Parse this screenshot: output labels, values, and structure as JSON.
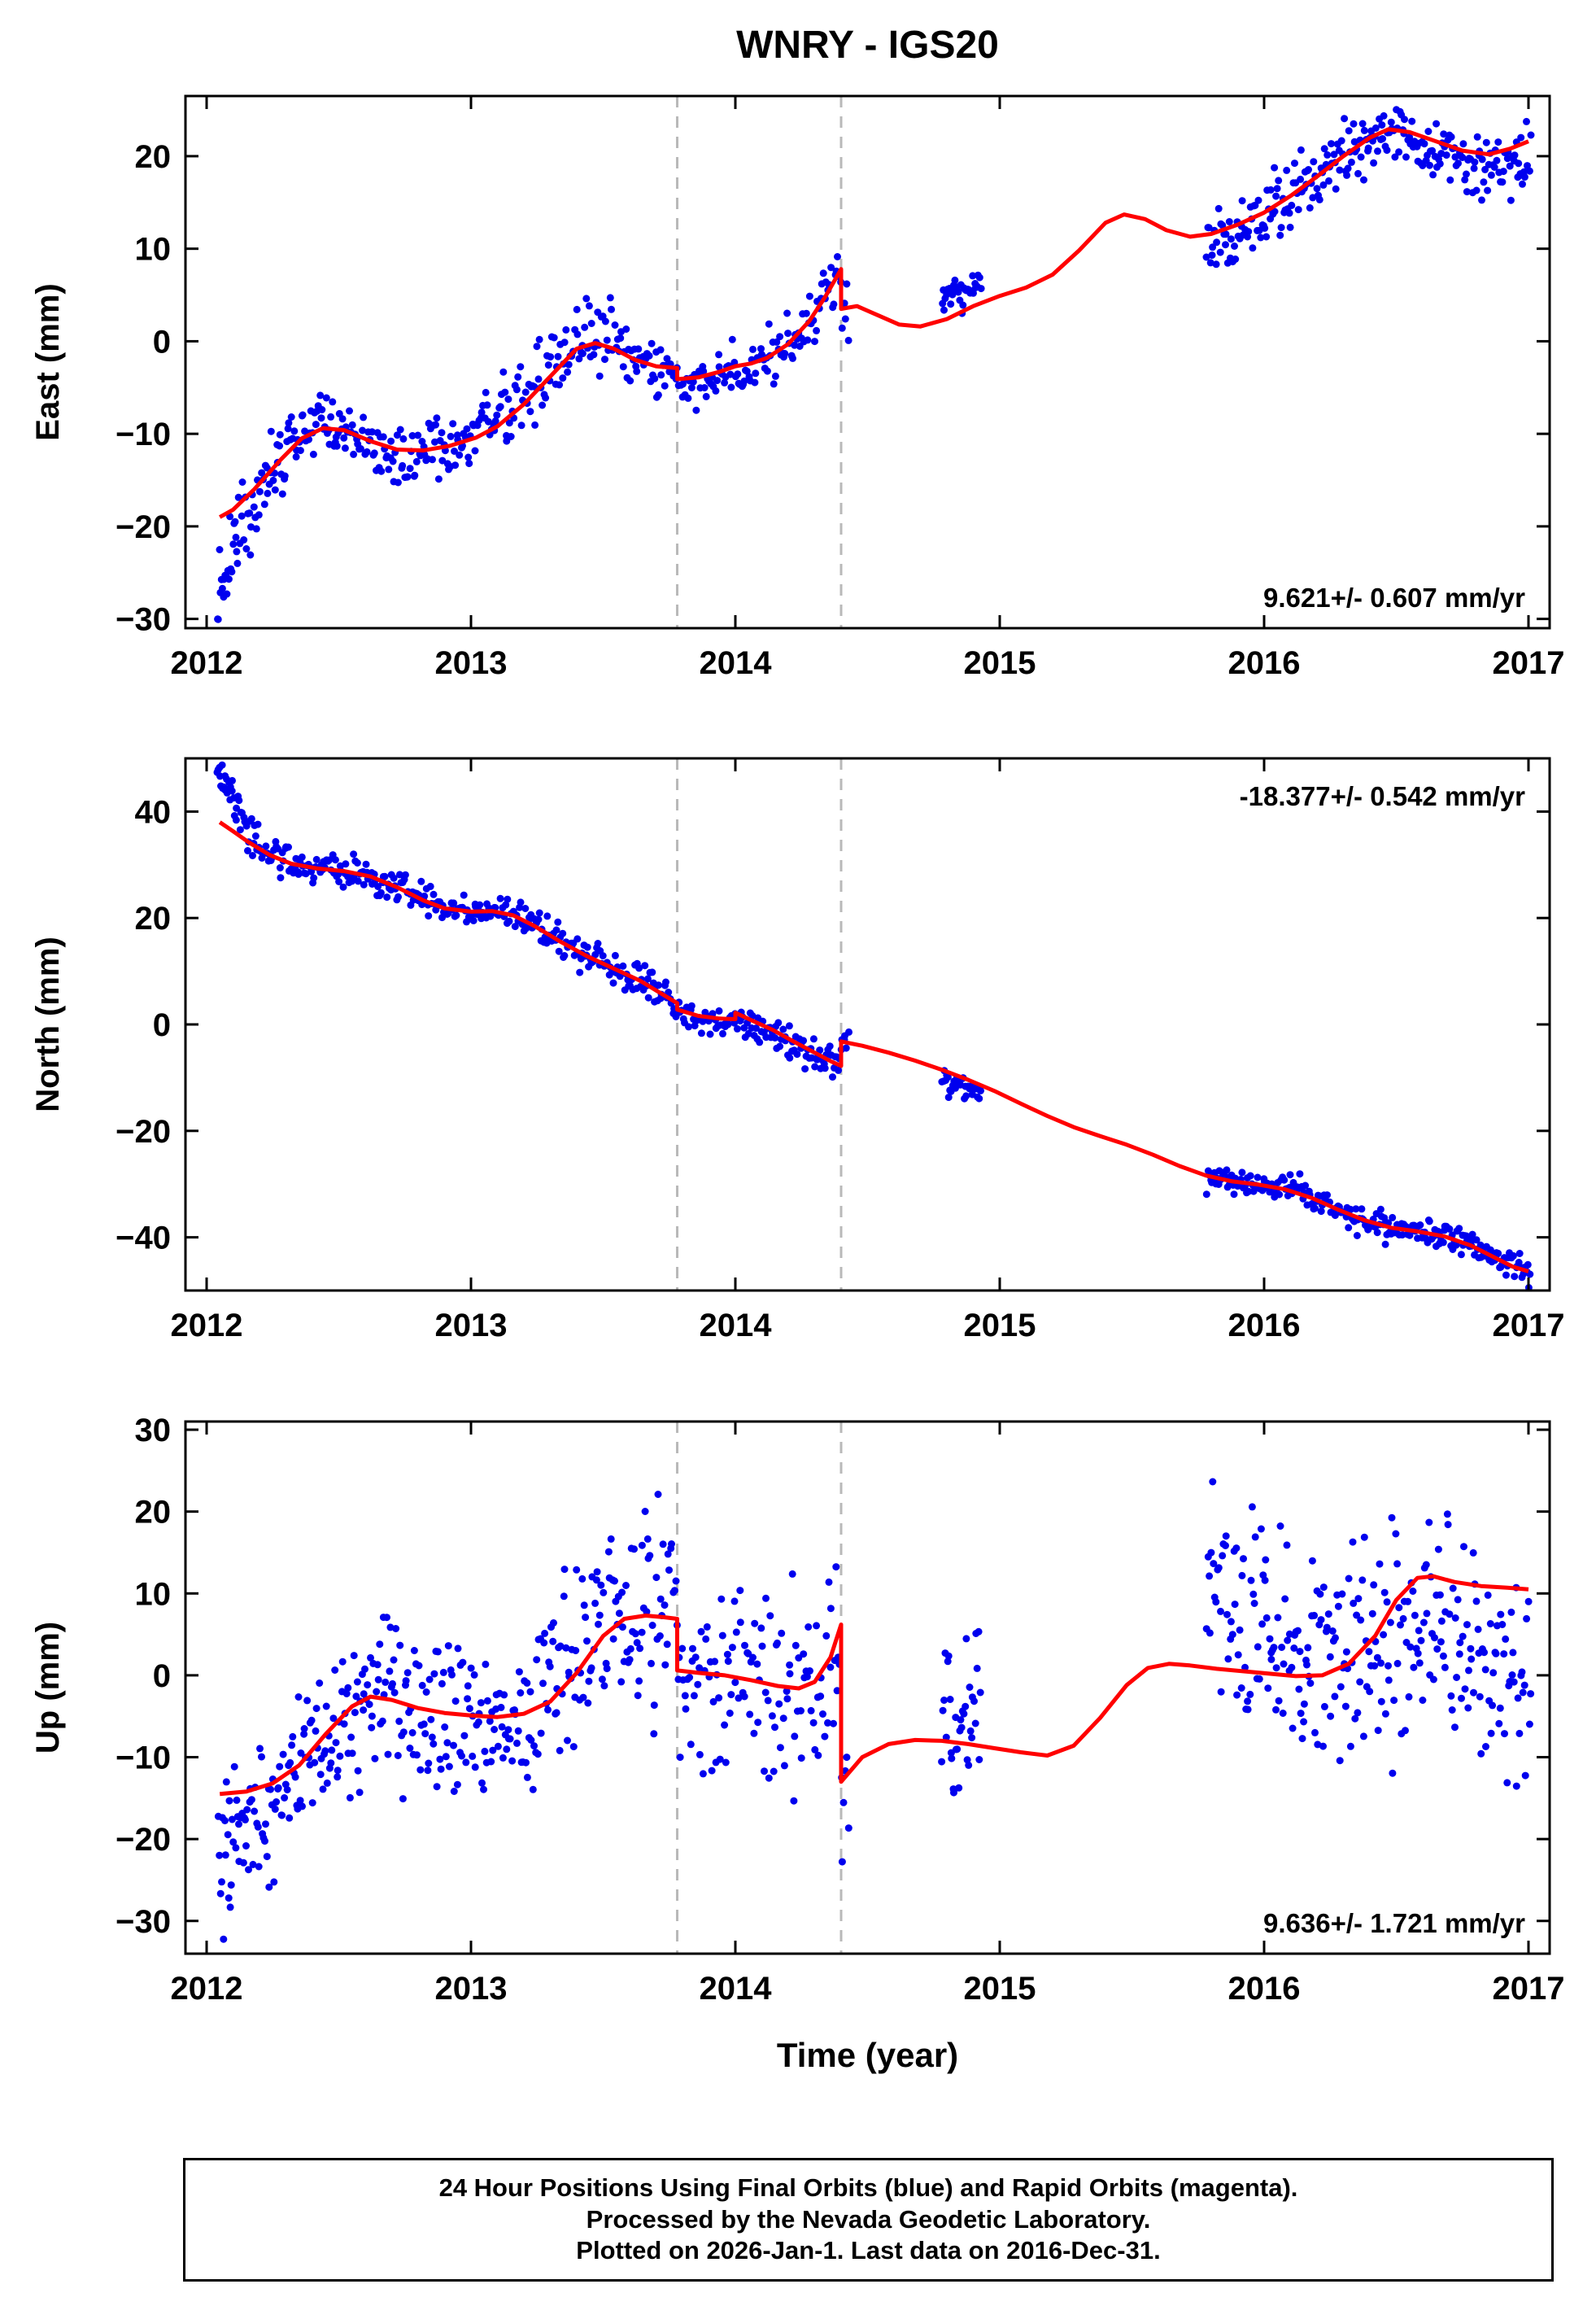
{
  "title": "WNRY - IGS20",
  "footer": {
    "lines": [
      "24 Hour Positions Using Final Orbits (blue) and Rapid Orbits (magenta).",
      "Processed by the Nevada Geodetic Laboratory.",
      "Plotted on 2026-Jan-1. Last data on 2016-Dec-31."
    ]
  },
  "chart_data": {
    "type": "scatter",
    "title": "WNRY - IGS20",
    "xlabel": "Time (year)",
    "xlim": [
      2011.92,
      2017.08
    ],
    "x_ticks": [
      2012,
      2013,
      2014,
      2015,
      2016,
      2017
    ],
    "event_times": [
      2013.78,
      2014.4
    ],
    "legend": "none",
    "grid": false,
    "colors": {
      "scatter": "#0000ee",
      "model": "#ff0000",
      "event_line": "#b9b9b9",
      "frame": "#000000"
    },
    "panels": [
      {
        "name": "east",
        "ylabel": "East (mm)",
        "ylim": [
          -31,
          26.5
        ],
        "yticks": [
          -30,
          -20,
          -10,
          0,
          10,
          20
        ],
        "rate": "9.621+/- 0.607 mm/yr",
        "rate_pos": "bottom-right",
        "model": [
          [
            2012.05,
            -19.0
          ],
          [
            2012.1,
            -18.2
          ],
          [
            2012.18,
            -16.0
          ],
          [
            2012.28,
            -12.8
          ],
          [
            2012.36,
            -10.5
          ],
          [
            2012.44,
            -9.4
          ],
          [
            2012.52,
            -9.6
          ],
          [
            2012.62,
            -10.8
          ],
          [
            2012.72,
            -11.7
          ],
          [
            2012.82,
            -11.8
          ],
          [
            2012.92,
            -11.3
          ],
          [
            2013.02,
            -10.4
          ],
          [
            2013.1,
            -9.2
          ],
          [
            2013.2,
            -6.8
          ],
          [
            2013.3,
            -3.8
          ],
          [
            2013.4,
            -0.8
          ],
          [
            2013.47,
            -0.2
          ],
          [
            2013.54,
            -0.8
          ],
          [
            2013.62,
            -2.0
          ],
          [
            2013.7,
            -2.7
          ],
          [
            2013.78,
            -2.9
          ],
          [
            2013.78,
            -4.1
          ],
          [
            2013.86,
            -3.9
          ],
          [
            2013.94,
            -3.3
          ],
          [
            2014.0,
            -2.7
          ],
          [
            2014.06,
            -2.4
          ],
          [
            2014.12,
            -1.8
          ],
          [
            2014.2,
            -0.3
          ],
          [
            2014.28,
            2.2
          ],
          [
            2014.34,
            4.8
          ],
          [
            2014.4,
            7.8
          ],
          [
            2014.4,
            3.5
          ],
          [
            2014.46,
            3.8
          ],
          [
            2014.54,
            2.8
          ],
          [
            2014.62,
            1.8
          ],
          [
            2014.7,
            1.6
          ],
          [
            2014.8,
            2.4
          ],
          [
            2014.9,
            3.8
          ],
          [
            2015.0,
            4.9
          ],
          [
            2015.1,
            5.8
          ],
          [
            2015.2,
            7.2
          ],
          [
            2015.3,
            9.8
          ],
          [
            2015.4,
            12.8
          ],
          [
            2015.47,
            13.7
          ],
          [
            2015.55,
            13.2
          ],
          [
            2015.63,
            12.0
          ],
          [
            2015.72,
            11.3
          ],
          [
            2015.8,
            11.6
          ],
          [
            2015.9,
            12.6
          ],
          [
            2016.0,
            13.9
          ],
          [
            2016.1,
            15.7
          ],
          [
            2016.2,
            17.8
          ],
          [
            2016.3,
            20.0
          ],
          [
            2016.4,
            22.0
          ],
          [
            2016.47,
            22.9
          ],
          [
            2016.55,
            22.6
          ],
          [
            2016.65,
            21.6
          ],
          [
            2016.75,
            20.6
          ],
          [
            2016.85,
            20.2
          ],
          [
            2016.93,
            20.8
          ],
          [
            2017.0,
            21.6
          ]
        ],
        "scatter_segments": [
          {
            "t": [
              2012.04,
              2012.12
            ],
            "bias": [
              -7,
              -4
            ],
            "sd": 2.0,
            "n": 22
          },
          {
            "t": [
              2012.12,
              2012.32
            ],
            "bias": [
              -3,
              0
            ],
            "sd": 2.2,
            "n": 42
          },
          {
            "t": [
              2012.32,
              2012.56
            ],
            "bias": [
              0.5,
              0.5
            ],
            "sd": 1.5,
            "n": 50
          },
          {
            "t": [
              2012.56,
              2013.06
            ],
            "bias": [
              -0.5,
              0
            ],
            "sd": 1.8,
            "n": 95
          },
          {
            "t": [
              2013.06,
              2013.62
            ],
            "bias": [
              0.5,
              0.5
            ],
            "sd": 2.0,
            "n": 105
          },
          {
            "t": [
              2013.62,
              2013.96
            ],
            "bias": [
              -0.5,
              -0.5
            ],
            "sd": 1.3,
            "n": 62
          },
          {
            "t": [
              2013.96,
              2014.43
            ],
            "bias": [
              0,
              0
            ],
            "sd": 1.6,
            "n": 85
          },
          {
            "t": [
              2014.78,
              2014.93
            ],
            "bias": [
              2,
              2.5
            ],
            "sd": 0.9,
            "n": 34
          },
          {
            "t": [
              2015.78,
              2016.02
            ],
            "bias": [
              -1.5,
              -0.5
            ],
            "sd": 1.6,
            "n": 48
          },
          {
            "t": [
              2016.02,
              2016.56
            ],
            "bias": [
              0,
              0
            ],
            "sd": 1.7,
            "n": 110
          },
          {
            "t": [
              2016.56,
              2017.01
            ],
            "bias": [
              -1,
              -1.5
            ],
            "sd": 1.7,
            "n": 92
          }
        ]
      },
      {
        "name": "north",
        "ylabel": "North (mm)",
        "ylim": [
          -50,
          50
        ],
        "yticks": [
          -40,
          -20,
          0,
          20,
          40
        ],
        "rate": "-18.377+/- 0.542 mm/yr",
        "rate_pos": "top-right",
        "model": [
          [
            2012.05,
            38.0
          ],
          [
            2012.1,
            36.3
          ],
          [
            2012.16,
            34.2
          ],
          [
            2012.24,
            31.8
          ],
          [
            2012.32,
            30.2
          ],
          [
            2012.42,
            29.3
          ],
          [
            2012.52,
            28.8
          ],
          [
            2012.62,
            27.8
          ],
          [
            2012.72,
            25.8
          ],
          [
            2012.82,
            23.3
          ],
          [
            2012.9,
            21.8
          ],
          [
            2013.0,
            21.2
          ],
          [
            2013.08,
            21.3
          ],
          [
            2013.16,
            20.5
          ],
          [
            2013.24,
            18.5
          ],
          [
            2013.34,
            15.5
          ],
          [
            2013.44,
            12.8
          ],
          [
            2013.54,
            10.5
          ],
          [
            2013.64,
            8.2
          ],
          [
            2013.72,
            5.8
          ],
          [
            2013.78,
            4.0
          ],
          [
            2013.78,
            2.8
          ],
          [
            2013.86,
            1.6
          ],
          [
            2013.94,
            1.1
          ],
          [
            2014.0,
            1.0
          ],
          [
            2014.0,
            2.2
          ],
          [
            2014.06,
            0.8
          ],
          [
            2014.14,
            -1.0
          ],
          [
            2014.22,
            -3.2
          ],
          [
            2014.3,
            -5.3
          ],
          [
            2014.36,
            -6.9
          ],
          [
            2014.4,
            -7.8
          ],
          [
            2014.4,
            -3.2
          ],
          [
            2014.48,
            -4.0
          ],
          [
            2014.58,
            -5.3
          ],
          [
            2014.68,
            -6.8
          ],
          [
            2014.78,
            -8.5
          ],
          [
            2014.88,
            -10.4
          ],
          [
            2014.98,
            -12.5
          ],
          [
            2015.08,
            -14.9
          ],
          [
            2015.18,
            -17.2
          ],
          [
            2015.28,
            -19.3
          ],
          [
            2015.38,
            -21.0
          ],
          [
            2015.48,
            -22.6
          ],
          [
            2015.58,
            -24.5
          ],
          [
            2015.68,
            -26.6
          ],
          [
            2015.78,
            -28.4
          ],
          [
            2015.88,
            -29.5
          ],
          [
            2015.98,
            -30.1
          ],
          [
            2016.08,
            -31.0
          ],
          [
            2016.18,
            -32.6
          ],
          [
            2016.28,
            -34.8
          ],
          [
            2016.38,
            -36.8
          ],
          [
            2016.48,
            -38.2
          ],
          [
            2016.58,
            -38.9
          ],
          [
            2016.68,
            -39.8
          ],
          [
            2016.78,
            -41.5
          ],
          [
            2016.86,
            -43.5
          ],
          [
            2016.94,
            -45.5
          ],
          [
            2017.0,
            -46.4
          ]
        ],
        "scatter_segments": [
          {
            "t": [
              2012.04,
              2012.1
            ],
            "bias": [
              9,
              7
            ],
            "sd": 1.3,
            "n": 18
          },
          {
            "t": [
              2012.1,
              2012.2
            ],
            "bias": [
              4,
              0
            ],
            "sd": 2.0,
            "n": 24
          },
          {
            "t": [
              2012.2,
              2012.62
            ],
            "bias": [
              0,
              0
            ],
            "sd": 1.5,
            "n": 80
          },
          {
            "t": [
              2012.62,
              2013.1
            ],
            "bias": [
              0,
              0
            ],
            "sd": 1.5,
            "n": 92
          },
          {
            "t": [
              2013.1,
              2013.8
            ],
            "bias": [
              0,
              0
            ],
            "sd": 1.5,
            "n": 130
          },
          {
            "t": [
              2013.8,
              2014.43
            ],
            "bias": [
              -0.5,
              -0.5
            ],
            "sd": 1.4,
            "n": 115
          },
          {
            "t": [
              2014.78,
              2014.93
            ],
            "bias": [
              -2.5,
              -2
            ],
            "sd": 1.1,
            "n": 34
          },
          {
            "t": [
              2015.78,
              2016.02
            ],
            "bias": [
              -0.5,
              0
            ],
            "sd": 1.2,
            "n": 48
          },
          {
            "t": [
              2016.02,
              2016.62
            ],
            "bias": [
              0,
              0
            ],
            "sd": 1.4,
            "n": 115
          },
          {
            "t": [
              2016.62,
              2017.01
            ],
            "bias": [
              0,
              0
            ],
            "sd": 1.3,
            "n": 80
          }
        ]
      },
      {
        "name": "up",
        "ylabel": "Up (mm)",
        "ylim": [
          -34,
          31
        ],
        "yticks": [
          -30,
          -20,
          -10,
          0,
          10,
          20,
          30
        ],
        "rate": "9.636+/- 1.721 mm/yr",
        "rate_pos": "bottom-right",
        "model": [
          [
            2012.05,
            -14.5
          ],
          [
            2012.15,
            -14.2
          ],
          [
            2012.25,
            -13.2
          ],
          [
            2012.35,
            -11.0
          ],
          [
            2012.45,
            -7.2
          ],
          [
            2012.55,
            -3.8
          ],
          [
            2012.62,
            -2.6
          ],
          [
            2012.7,
            -3.0
          ],
          [
            2012.8,
            -4.0
          ],
          [
            2012.9,
            -4.6
          ],
          [
            2013.0,
            -4.9
          ],
          [
            2013.1,
            -5.1
          ],
          [
            2013.2,
            -4.7
          ],
          [
            2013.3,
            -3.2
          ],
          [
            2013.4,
            0.3
          ],
          [
            2013.5,
            4.8
          ],
          [
            2013.58,
            6.9
          ],
          [
            2013.66,
            7.3
          ],
          [
            2013.73,
            7.1
          ],
          [
            2013.78,
            6.9
          ],
          [
            2013.78,
            0.6
          ],
          [
            2013.86,
            0.3
          ],
          [
            2013.96,
            0.0
          ],
          [
            2014.06,
            -0.6
          ],
          [
            2014.16,
            -1.3
          ],
          [
            2014.24,
            -1.6
          ],
          [
            2014.3,
            -0.8
          ],
          [
            2014.36,
            2.2
          ],
          [
            2014.4,
            6.2
          ],
          [
            2014.4,
            -13.0
          ],
          [
            2014.48,
            -10.0
          ],
          [
            2014.58,
            -8.4
          ],
          [
            2014.68,
            -7.9
          ],
          [
            2014.78,
            -8.0
          ],
          [
            2014.88,
            -8.4
          ],
          [
            2014.98,
            -8.9
          ],
          [
            2015.08,
            -9.4
          ],
          [
            2015.18,
            -9.8
          ],
          [
            2015.28,
            -8.6
          ],
          [
            2015.38,
            -5.2
          ],
          [
            2015.48,
            -1.2
          ],
          [
            2015.56,
            0.9
          ],
          [
            2015.64,
            1.4
          ],
          [
            2015.72,
            1.2
          ],
          [
            2015.82,
            0.8
          ],
          [
            2015.92,
            0.5
          ],
          [
            2016.02,
            0.2
          ],
          [
            2016.12,
            -0.1
          ],
          [
            2016.22,
            0.0
          ],
          [
            2016.32,
            1.4
          ],
          [
            2016.42,
            4.8
          ],
          [
            2016.5,
            9.2
          ],
          [
            2016.58,
            11.9
          ],
          [
            2016.64,
            12.1
          ],
          [
            2016.72,
            11.4
          ],
          [
            2016.82,
            10.9
          ],
          [
            2016.92,
            10.7
          ],
          [
            2017.0,
            10.5
          ]
        ],
        "scatter_segments": [
          {
            "t": [
              2012.04,
              2012.16
            ],
            "bias": [
              -8,
              -5
            ],
            "sd": 5.0,
            "n": 32
          },
          {
            "t": [
              2012.16,
              2012.36
            ],
            "bias": [
              -4,
              -2
            ],
            "sd": 4.5,
            "n": 45
          },
          {
            "t": [
              2012.36,
              2012.72
            ],
            "bias": [
              0,
              1
            ],
            "sd": 4.5,
            "n": 80
          },
          {
            "t": [
              2012.72,
              2013.26
            ],
            "bias": [
              -1,
              -1
            ],
            "sd": 5.0,
            "n": 115
          },
          {
            "t": [
              2013.26,
              2013.79
            ],
            "bias": [
              1,
              1
            ],
            "sd": 5.5,
            "n": 115
          },
          {
            "t": [
              2013.79,
              2014.43
            ],
            "bias": [
              0,
              0
            ],
            "sd": 5.5,
            "n": 120
          },
          {
            "t": [
              2014.78,
              2014.93
            ],
            "bias": [
              3,
              4
            ],
            "sd": 5.5,
            "n": 36
          },
          {
            "t": [
              2015.78,
              2016.06
            ],
            "bias": [
              12,
              4
            ],
            "sd": 6.0,
            "n": 60
          },
          {
            "t": [
              2016.06,
              2016.36
            ],
            "bias": [
              4,
              1
            ],
            "sd": 6.0,
            "n": 66
          },
          {
            "t": [
              2016.36,
              2017.01
            ],
            "bias": [
              -1,
              -12
            ],
            "sd": 6.5,
            "n": 140
          }
        ]
      }
    ]
  }
}
